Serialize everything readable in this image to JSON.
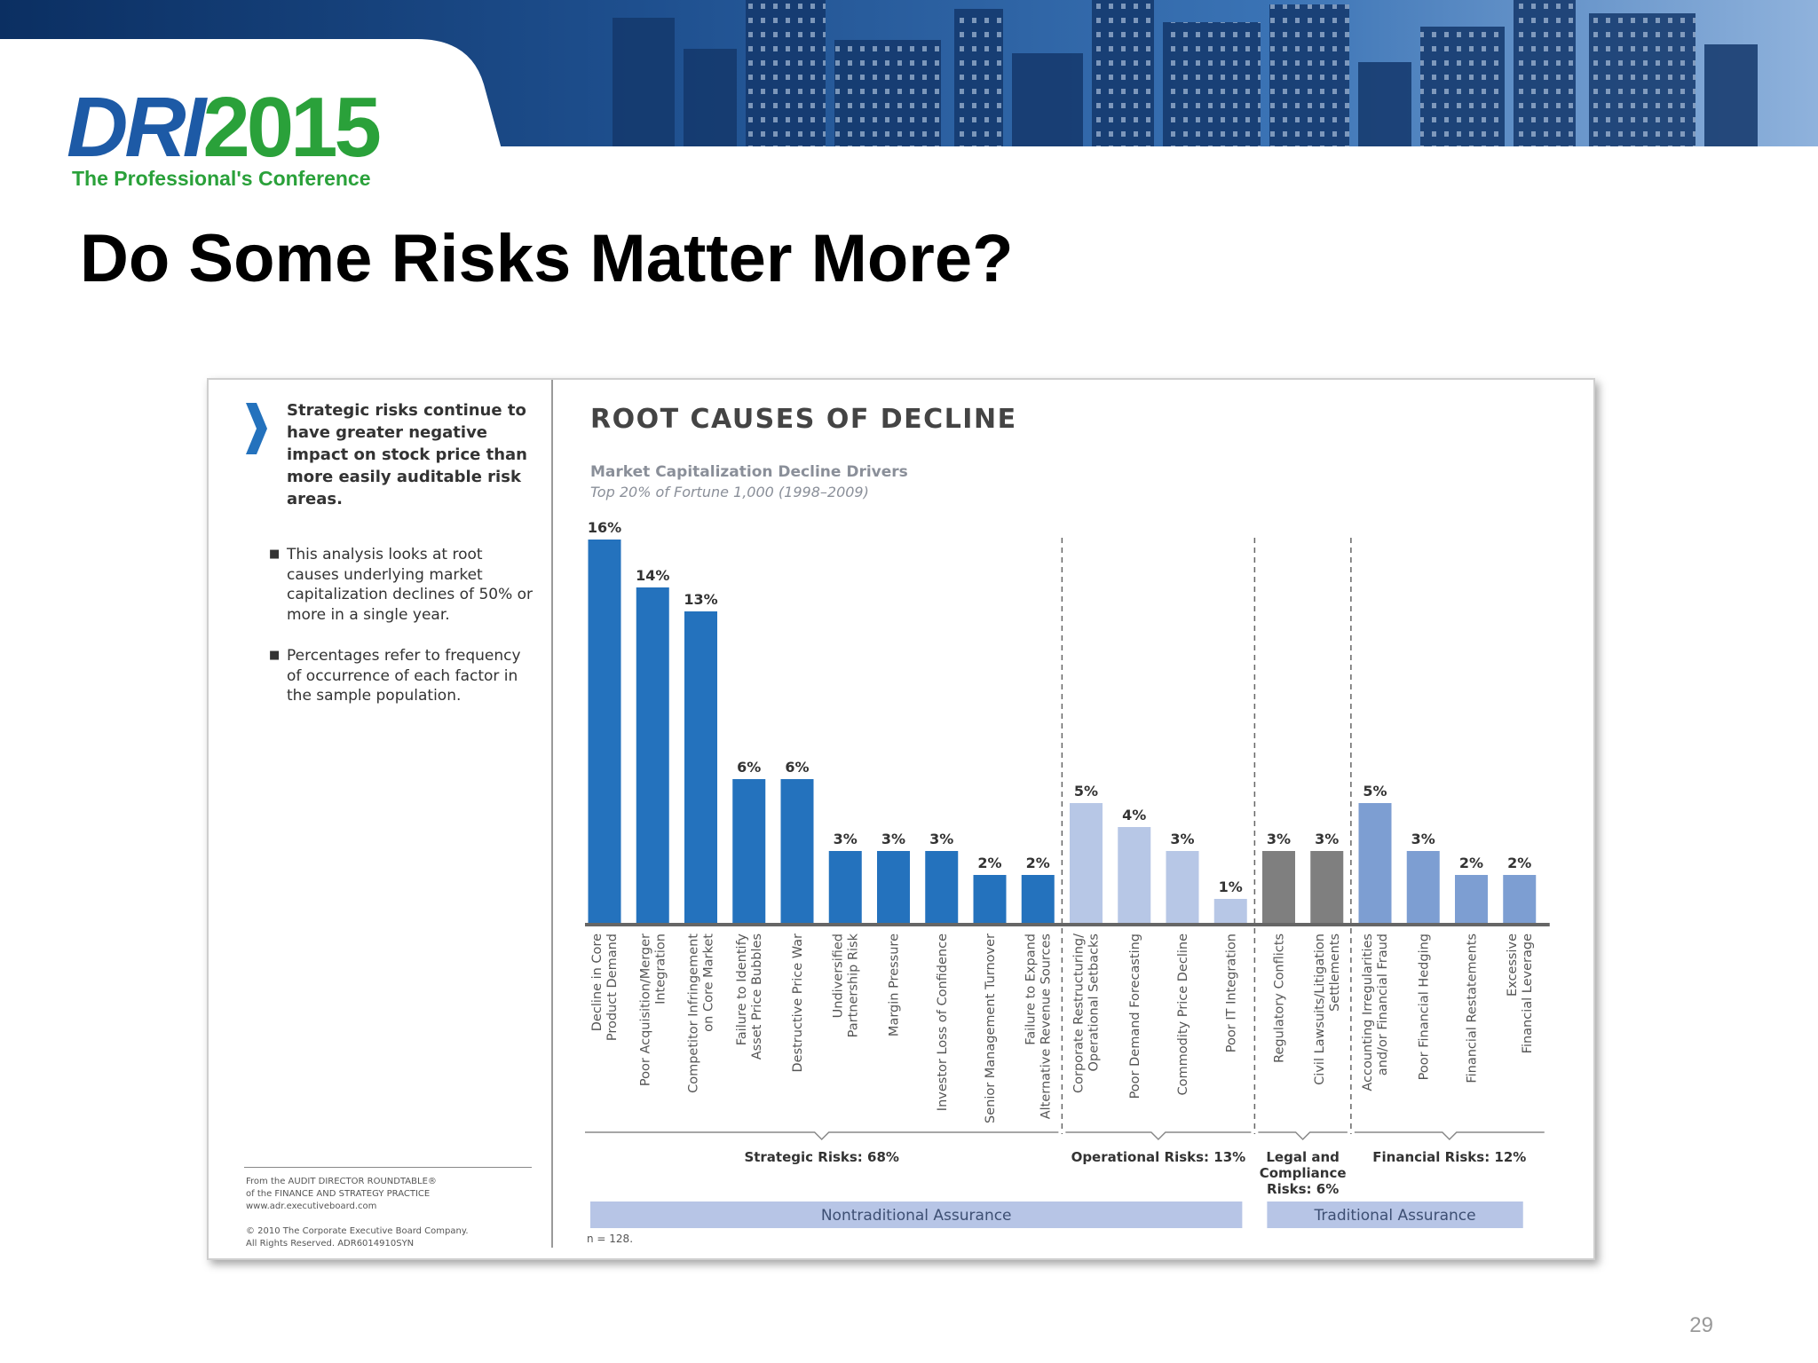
{
  "slide": {
    "title": "Do Some Risks Matter More?",
    "page_number": "29"
  },
  "logo": {
    "dri": "DRI",
    "year": "2015",
    "tagline": "The Professional's Conference"
  },
  "colors": {
    "strategic": "#2472bd",
    "operational": "#b7c7e6",
    "legal": "#7f7f7f",
    "financial": "#7d9ed2",
    "assurance_band": "#b7c5e6",
    "logo_blue": "#1d5aa6",
    "logo_green": "#2aa13a"
  },
  "sidebar": {
    "icon": "chevron-right-icon",
    "key_point": "Strategic risks continue to have greater negative impact on stock price than more easily auditable risk areas.",
    "bullets": [
      "This analysis looks at root causes underlying market capitalization declines of 50% or more in a single year.",
      "Percentages refer to frequency of occurrence of each factor in the sample population."
    ],
    "source": [
      "From the AUDIT DIRECTOR ROUNDTABLE®",
      "of the FINANCE AND STRATEGY PRACTICE",
      "www.adr.executiveboard.com"
    ],
    "copyright": [
      "© 2010 The Corporate Executive Board Company.",
      "All Rights Reserved. ADR6014910SYN"
    ]
  },
  "chart_data": {
    "type": "bar",
    "title": "ROOT CAUSES OF DECLINE",
    "subtitle": "Market Capitalization Decline Drivers",
    "subtitle2": "Top 20% of Fortune 1,000 (1998–2009)",
    "unit": "%",
    "ylim": [
      0,
      16
    ],
    "grid": false,
    "categories": [
      "Decline in Core Product Demand",
      "Poor Acquisition/Merger Integration",
      "Competitor Infringement on Core Market",
      "Failure to Identify Asset Price Bubbles",
      "Destructive Price War",
      "Undiversified Partnership Risk",
      "Margin Pressure",
      "Investor Loss of Confidence",
      "Senior Management Turnover",
      "Failure to Expand Alternative Revenue Sources",
      "Corporate Restructuring/ Operational Setbacks",
      "Poor Demand Forecasting",
      "Commodity Price Decline",
      "Poor IT Integration",
      "Regulatory Conflicts",
      "Civil Lawsuits/Litigation Settlements",
      "Accounting Irregularities and/or Financial Fraud",
      "Poor Financial Hedging",
      "Financial Restatements",
      "Excessive Financial Leverage"
    ],
    "values": [
      16,
      14,
      13,
      6,
      6,
      3,
      3,
      3,
      2,
      2,
      5,
      4,
      3,
      1,
      3,
      3,
      5,
      3,
      2,
      2
    ],
    "value_labels": [
      "16%",
      "14%",
      "13%",
      "6%",
      "6%",
      "3%",
      "3%",
      "3%",
      "2%",
      "2%",
      "5%",
      "4%",
      "3%",
      "1%",
      "3%",
      "3%",
      "5%",
      "3%",
      "2%",
      "2%"
    ],
    "groups": [
      {
        "name": "Strategic",
        "label": "Strategic Risks: 68%",
        "start": 0,
        "end": 9
      },
      {
        "name": "Operational",
        "label": "Operational Risks: 13%",
        "start": 10,
        "end": 13
      },
      {
        "name": "Legal and Compliance",
        "label": "Legal and Compliance Risks: 6%",
        "start": 14,
        "end": 15
      },
      {
        "name": "Financial",
        "label": "Financial Risks: 12%",
        "start": 16,
        "end": 19
      }
    ],
    "assurance": [
      {
        "label": "Nontraditional Assurance",
        "start": 0,
        "end": 13
      },
      {
        "label": "Traditional Assurance",
        "start": 14,
        "end": 19
      }
    ],
    "note": "n = 128."
  }
}
